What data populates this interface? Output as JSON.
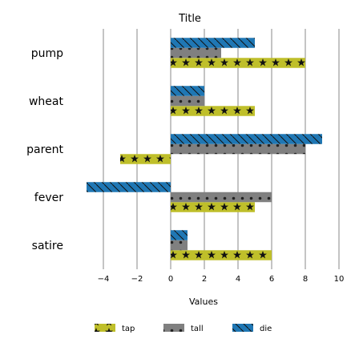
{
  "chart_data": {
    "type": "bar",
    "orientation": "horizontal",
    "title": "Title",
    "xlabel": "Values",
    "ylabel": "",
    "categories": [
      "satire",
      "fever",
      "parent",
      "wheat",
      "pump"
    ],
    "series": [
      {
        "name": "tap",
        "color": "#bfbf2a",
        "pattern": "star",
        "values": [
          6,
          5,
          -3,
          5,
          8
        ]
      },
      {
        "name": "tall",
        "color": "#808080",
        "pattern": "dot",
        "values": [
          1,
          6,
          8,
          2,
          3
        ]
      },
      {
        "name": "die",
        "color": "#1f77b4",
        "pattern": "backslash",
        "values": [
          1,
          -5,
          9,
          2,
          5
        ]
      }
    ],
    "xlim": [
      -6,
      10
    ],
    "xticks": [
      -4,
      -2,
      0,
      2,
      4,
      6,
      8,
      10
    ],
    "xtick_labels": [
      "−4",
      "−2",
      "0",
      "2",
      "4",
      "6",
      "8",
      "10"
    ],
    "grid": true,
    "legend": "bottom-center"
  }
}
